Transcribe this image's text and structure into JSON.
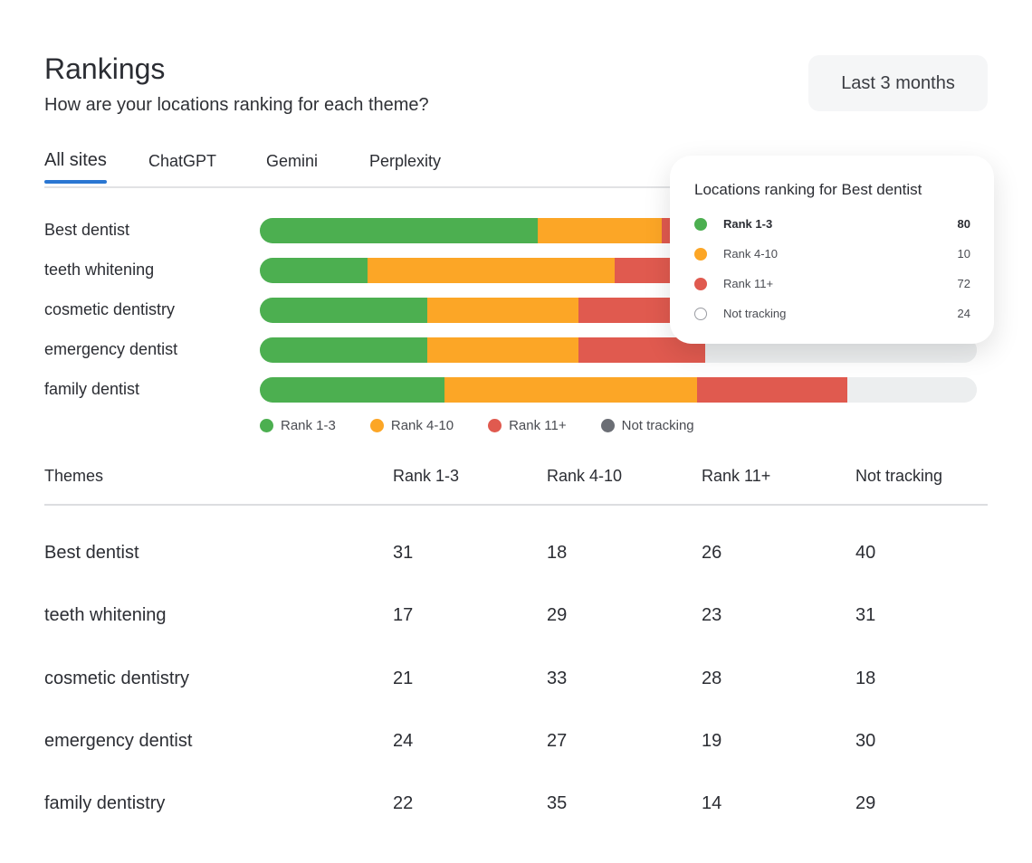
{
  "header": {
    "title": "Rankings",
    "subtitle": "How are your locations ranking for each theme?",
    "date_range": "Last 3 months"
  },
  "tabs": [
    {
      "label": "All sites",
      "active": true
    },
    {
      "label": "ChatGPT"
    },
    {
      "label": "Gemini"
    },
    {
      "label": "Perplexity"
    }
  ],
  "colors": {
    "rank_1_3": "#4caf50",
    "rank_4_10": "#fca626",
    "rank_11_plus": "#e05a4f",
    "not_tracking": "#eceeef",
    "legend_not_tracking": "#6b6e75",
    "tab_active": "#2a76d2"
  },
  "chart_data": {
    "type": "bar",
    "orientation": "horizontal",
    "stacked": true,
    "unit": "percent of bar",
    "categories": [
      "Best dentist",
      "teeth whitening",
      "cosmetic dentistry",
      "emergency dentist",
      "family dentist"
    ],
    "series": [
      {
        "name": "Rank 1-3",
        "values": [
          38.8,
          15.0,
          23.4,
          23.4,
          25.8
        ]
      },
      {
        "name": "Rank 4-10",
        "values": [
          17.3,
          34.5,
          21.0,
          21.0,
          35.2
        ]
      },
      {
        "name": "Rank 11+",
        "values": [
          22.5,
          21.6,
          17.7,
          17.7,
          21.0
        ]
      },
      {
        "name": "Not tracking",
        "values": [
          21.4,
          28.9,
          37.9,
          37.9,
          18.0
        ]
      }
    ],
    "legend": [
      "Rank 1-3",
      "Rank 4-10",
      "Rank 11+",
      "Not tracking"
    ],
    "legend_position": "bottom"
  },
  "tooltip": {
    "title": "Locations ranking for Best dentist",
    "rows": [
      {
        "label": "Rank 1-3",
        "value": "80"
      },
      {
        "label": "Rank 4-10",
        "value": "10"
      },
      {
        "label": "Rank 11+",
        "value": "72"
      },
      {
        "label": "Not tracking",
        "value": "24"
      }
    ]
  },
  "table": {
    "headers": [
      "Themes",
      "Rank 1-3",
      "Rank 4-10",
      "Rank 11+",
      "Not tracking"
    ],
    "rows": [
      [
        "Best dentist",
        "31",
        "18",
        "26",
        "40"
      ],
      [
        "teeth whitening",
        "17",
        "29",
        "23",
        "31"
      ],
      [
        "cosmetic dentistry",
        "21",
        "33",
        "28",
        "18"
      ],
      [
        "emergency dentist",
        "24",
        "27",
        "19",
        "30"
      ],
      [
        "family dentistry",
        "22",
        "35",
        "14",
        "29"
      ]
    ]
  }
}
